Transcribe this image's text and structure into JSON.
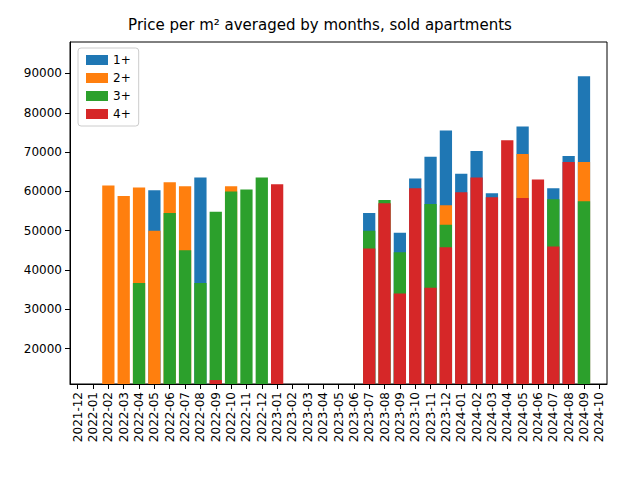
{
  "chart_data": {
    "type": "bar",
    "title": "Price per m² averaged by months, sold apartments",
    "categories": [
      "2021-12",
      "2022-01",
      "2022-02",
      "2022-03",
      "2022-04",
      "2022-05",
      "2022-06",
      "2022-07",
      "2022-08",
      "2022-09",
      "2022-10",
      "2022-11",
      "2022-12",
      "2023-01",
      "2023-02",
      "2023-03",
      "2023-04",
      "2023-05",
      "2023-06",
      "2023-07",
      "2023-08",
      "2023-09",
      "2023-10",
      "2023-11",
      "2023-12",
      "2024-01",
      "2024-02",
      "2024-03",
      "2024-04",
      "2024-05",
      "2024-06",
      "2024-07",
      "2024-08",
      "2024-09",
      "2024-10"
    ],
    "series": [
      {
        "name": "1+",
        "color": "#1f77b4",
        "values": [
          null,
          null,
          null,
          null,
          null,
          60300,
          null,
          null,
          63500,
          null,
          null,
          null,
          null,
          null,
          null,
          null,
          null,
          null,
          null,
          54500,
          null,
          49500,
          63300,
          68800,
          75500,
          64500,
          70300,
          59500,
          null,
          76500,
          null,
          60800,
          69000,
          89300,
          null
        ]
      },
      {
        "name": "2+",
        "color": "#ff7f0e",
        "values": [
          null,
          null,
          61500,
          58800,
          61000,
          50000,
          62300,
          61300,
          null,
          null,
          61300,
          null,
          null,
          null,
          null,
          null,
          null,
          null,
          null,
          null,
          null,
          null,
          null,
          null,
          56500,
          null,
          null,
          null,
          null,
          69500,
          null,
          null,
          null,
          67500,
          null
        ]
      },
      {
        "name": "3+",
        "color": "#2ca02c",
        "values": [
          null,
          null,
          null,
          null,
          36700,
          null,
          54500,
          45000,
          36700,
          54800,
          60000,
          60500,
          63500,
          null,
          null,
          null,
          null,
          null,
          null,
          50000,
          57800,
          44500,
          null,
          56800,
          51500,
          null,
          null,
          null,
          null,
          null,
          null,
          58000,
          null,
          57500,
          null
        ]
      },
      {
        "name": "4+",
        "color": "#d62728",
        "values": [
          null,
          null,
          null,
          null,
          null,
          null,
          null,
          null,
          null,
          12000,
          null,
          null,
          null,
          61800,
          null,
          null,
          null,
          null,
          null,
          45500,
          57000,
          34000,
          60800,
          35500,
          45800,
          59800,
          63500,
          58500,
          73000,
          58300,
          63000,
          46000,
          67500,
          null,
          null
        ]
      }
    ],
    "ylim": [
      11000,
      98000
    ],
    "yticks": [
      20000,
      30000,
      40000,
      50000,
      60000,
      70000,
      80000,
      90000
    ],
    "grid": false,
    "legend": "upper left"
  }
}
